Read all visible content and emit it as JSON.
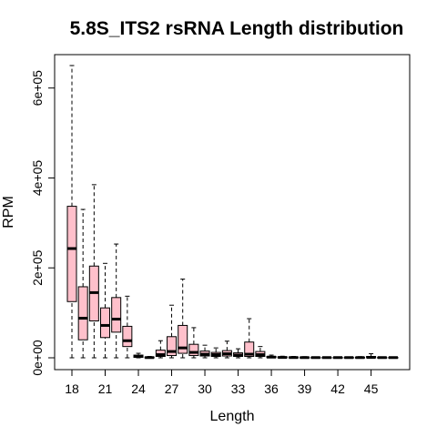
{
  "chart_data": {
    "type": "boxplot",
    "title": "5.8S_ITS2 rsRNA Length distribution",
    "xlabel": "Length",
    "ylabel": "RPM",
    "x_tick_labels": [
      "18",
      "21",
      "24",
      "27",
      "30",
      "33",
      "36",
      "39",
      "42",
      "45"
    ],
    "y_tick_labels": [
      "0e+00",
      "2e+05",
      "4e+05",
      "6e+05"
    ],
    "y_ticks": [
      0,
      200000,
      400000,
      600000
    ],
    "ylim": [
      0,
      650000
    ],
    "box_fill": "#FFC0CB",
    "grid": false,
    "boxes": [
      {
        "x": 18,
        "min": 0,
        "q1": 125000,
        "median": 243000,
        "q3": 337000,
        "max": 650000
      },
      {
        "x": 19,
        "min": 0,
        "q1": 40000,
        "median": 88000,
        "q3": 158000,
        "max": 330000
      },
      {
        "x": 20,
        "min": 0,
        "q1": 82000,
        "median": 145000,
        "q3": 204000,
        "max": 385000
      },
      {
        "x": 21,
        "min": 0,
        "q1": 45000,
        "median": 72000,
        "q3": 111000,
        "max": 210000
      },
      {
        "x": 22,
        "min": 0,
        "q1": 57000,
        "median": 86000,
        "q3": 134000,
        "max": 253000
      },
      {
        "x": 23,
        "min": 0,
        "q1": 25000,
        "median": 38000,
        "q3": 70000,
        "max": 137000
      },
      {
        "x": 24,
        "min": 0,
        "q1": 1000,
        "median": 3000,
        "q3": 6000,
        "max": 10000
      },
      {
        "x": 25,
        "min": 0,
        "q1": 0,
        "median": 500,
        "q3": 1500,
        "max": 3000
      },
      {
        "x": 26,
        "min": 0,
        "q1": 3000,
        "median": 7000,
        "q3": 17000,
        "max": 38000
      },
      {
        "x": 27,
        "min": 0,
        "q1": 5000,
        "median": 14000,
        "q3": 47000,
        "max": 117000
      },
      {
        "x": 28,
        "min": 0,
        "q1": 10000,
        "median": 22000,
        "q3": 72000,
        "max": 175000
      },
      {
        "x": 29,
        "min": 0,
        "q1": 5000,
        "median": 12000,
        "q3": 30000,
        "max": 67000
      },
      {
        "x": 30,
        "min": 0,
        "q1": 4000,
        "median": 8000,
        "q3": 15000,
        "max": 28000
      },
      {
        "x": 31,
        "min": 0,
        "q1": 3000,
        "median": 7000,
        "q3": 12000,
        "max": 22000
      },
      {
        "x": 32,
        "min": 0,
        "q1": 4000,
        "median": 9000,
        "q3": 16000,
        "max": 37000
      },
      {
        "x": 33,
        "min": 0,
        "q1": 3000,
        "median": 6000,
        "q3": 11000,
        "max": 20000
      },
      {
        "x": 34,
        "min": 0,
        "q1": 3000,
        "median": 8000,
        "q3": 35000,
        "max": 87000
      },
      {
        "x": 35,
        "min": 0,
        "q1": 3000,
        "median": 7000,
        "q3": 14000,
        "max": 25000
      },
      {
        "x": 36,
        "min": 0,
        "q1": 500,
        "median": 1500,
        "q3": 3000,
        "max": 6000
      },
      {
        "x": 37,
        "min": 0,
        "q1": 300,
        "median": 800,
        "q3": 2000,
        "max": 3500
      },
      {
        "x": 38,
        "min": 0,
        "q1": 200,
        "median": 600,
        "q3": 1500,
        "max": 3000
      },
      {
        "x": 39,
        "min": 0,
        "q1": 200,
        "median": 500,
        "q3": 1200,
        "max": 2500
      },
      {
        "x": 40,
        "min": 0,
        "q1": 200,
        "median": 500,
        "q3": 1000,
        "max": 2000
      },
      {
        "x": 41,
        "min": 0,
        "q1": 200,
        "median": 500,
        "q3": 1000,
        "max": 2000
      },
      {
        "x": 42,
        "min": 0,
        "q1": 200,
        "median": 500,
        "q3": 1000,
        "max": 2000
      },
      {
        "x": 43,
        "min": 0,
        "q1": 200,
        "median": 500,
        "q3": 1000,
        "max": 2000
      },
      {
        "x": 44,
        "min": 0,
        "q1": 200,
        "median": 500,
        "q3": 1000,
        "max": 2500
      },
      {
        "x": 45,
        "min": 0,
        "q1": 300,
        "median": 800,
        "q3": 3000,
        "max": 9000
      },
      {
        "x": 46,
        "min": 0,
        "q1": 200,
        "median": 500,
        "q3": 1000,
        "max": 2000
      },
      {
        "x": 47,
        "min": 0,
        "q1": 200,
        "median": 500,
        "q3": 1000,
        "max": 2000
      }
    ]
  }
}
